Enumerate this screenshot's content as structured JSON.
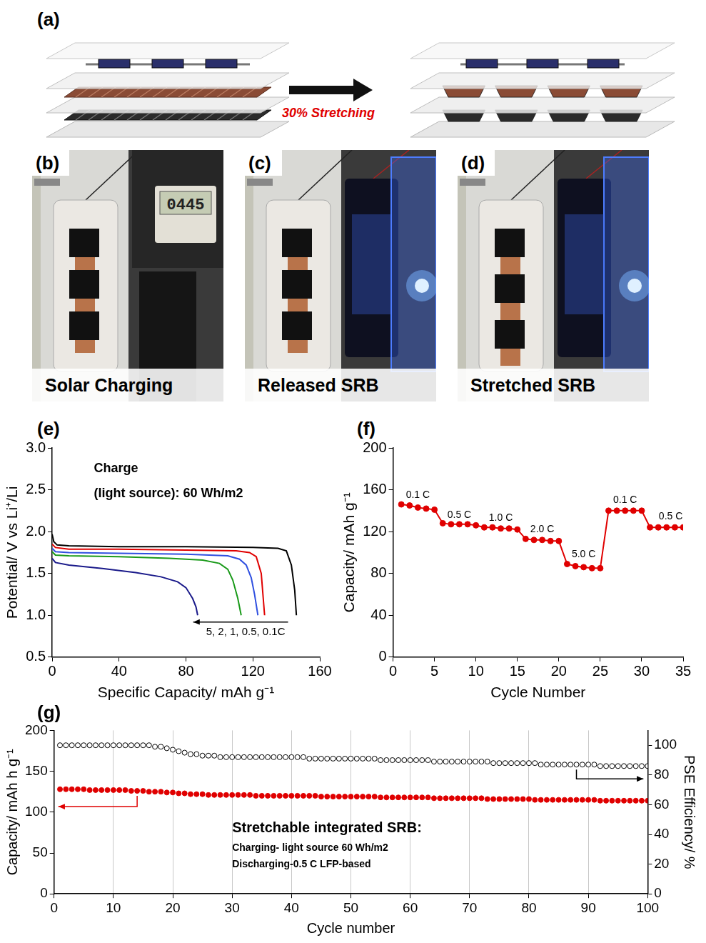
{
  "panels": {
    "a": {
      "letter": "(a)",
      "arrow_label": "30% Stretching"
    },
    "photos": [
      {
        "letter": "(b)",
        "caption": "Solar Charging",
        "meter_reading": "0445"
      },
      {
        "letter": "(c)",
        "caption": "Released SRB"
      },
      {
        "letter": "(d)",
        "caption": "Stretched SRB"
      }
    ]
  },
  "chart_data": [
    {
      "letter": "(e)",
      "type": "line",
      "x_label": "Specific Capacity/ mAh g⁻¹",
      "y_label": "Potential/ V vs Li⁺/Li",
      "xlim": [
        0,
        160
      ],
      "xticks": [
        0,
        40,
        80,
        120,
        160
      ],
      "ylim": [
        0.5,
        3.0
      ],
      "yticks": [
        0.5,
        {
          "value": 1,
          "label": "1.0"
        },
        1.5,
        {
          "value": 2,
          "label": "2.0"
        },
        2.5,
        {
          "value": 3,
          "label": "3.0"
        }
      ],
      "grid": false,
      "annotations": [
        {
          "text": "Charge",
          "x": 25,
          "y": 2.75
        },
        {
          "text": "(light source): 60 Wh/m2",
          "x": 25,
          "y": 2.45
        },
        {
          "text": "5, 2, 1, 0.5, 0.1C",
          "x": 92,
          "y": 0.8
        }
      ],
      "series": [
        {
          "color": "#000000",
          "x": [
            0,
            1,
            3,
            10,
            40,
            80,
            120,
            135,
            140,
            143,
            145,
            146
          ],
          "values": [
            1.97,
            1.88,
            1.84,
            1.83,
            1.82,
            1.82,
            1.81,
            1.8,
            1.77,
            1.6,
            1.3,
            1.0
          ]
        },
        {
          "color": "#e00000",
          "x": [
            0,
            2,
            10,
            40,
            80,
            110,
            118,
            122,
            125,
            126,
            127
          ],
          "values": [
            1.85,
            1.81,
            1.79,
            1.79,
            1.78,
            1.77,
            1.75,
            1.7,
            1.5,
            1.25,
            1.0
          ]
        },
        {
          "color": "#3050e0",
          "x": [
            0,
            2,
            10,
            40,
            80,
            105,
            112,
            116,
            119,
            121,
            123
          ],
          "values": [
            1.8,
            1.76,
            1.75,
            1.74,
            1.73,
            1.71,
            1.67,
            1.6,
            1.45,
            1.25,
            1.0
          ]
        },
        {
          "color": "#1a9a1a",
          "x": [
            0,
            2,
            10,
            40,
            70,
            90,
            100,
            105,
            108,
            111,
            113
          ],
          "values": [
            1.76,
            1.72,
            1.71,
            1.7,
            1.68,
            1.66,
            1.62,
            1.55,
            1.42,
            1.2,
            1.0
          ]
        },
        {
          "color": "#1a1a8a",
          "x": [
            0,
            2,
            10,
            30,
            50,
            65,
            75,
            80,
            84,
            86,
            87
          ],
          "values": [
            1.68,
            1.63,
            1.6,
            1.56,
            1.51,
            1.46,
            1.4,
            1.33,
            1.2,
            1.1,
            1.0
          ]
        }
      ]
    },
    {
      "letter": "(f)",
      "type": "line",
      "x_label": "Cycle Number",
      "y_label": "Capacity/ mAh g⁻¹",
      "xlim": [
        0,
        35
      ],
      "xticks": [
        0,
        5,
        10,
        15,
        20,
        25,
        30,
        35
      ],
      "ylim": [
        0,
        200
      ],
      "yticks": [
        0,
        40,
        80,
        120,
        160,
        200
      ],
      "grid": false,
      "annotations": [
        {
          "text": "0.1 C",
          "x": 3,
          "y": 155
        },
        {
          "text": "0.5 C",
          "x": 8,
          "y": 136
        },
        {
          "text": "1.0 C",
          "x": 13,
          "y": 133
        },
        {
          "text": "2.0 C",
          "x": 18,
          "y": 122
        },
        {
          "text": "5.0 C",
          "x": 23,
          "y": 98
        },
        {
          "text": "0.1 C",
          "x": 28,
          "y": 150
        },
        {
          "text": "0.5 C",
          "x": 33.5,
          "y": 134
        }
      ],
      "series": [
        {
          "color": "#e00000",
          "marker": "circle",
          "line_style": "solid",
          "x": [
            1,
            2,
            3,
            4,
            5,
            6,
            7,
            8,
            9,
            10,
            11,
            12,
            13,
            14,
            15,
            16,
            17,
            18,
            19,
            20,
            21,
            22,
            23,
            24,
            25,
            26,
            27,
            28,
            29,
            30,
            31,
            32,
            33,
            34,
            35
          ],
          "values": [
            146,
            145,
            143,
            142,
            141,
            128,
            127,
            127,
            127,
            126,
            124,
            124,
            123,
            123,
            122,
            113,
            112,
            112,
            111,
            111,
            89,
            87,
            86,
            85,
            85,
            140,
            140,
            140,
            140,
            140,
            124,
            124,
            124,
            124,
            124
          ]
        }
      ]
    },
    {
      "letter": "(g)",
      "type": "scatter",
      "x_label": "Cycle number",
      "y_label": "Capacity/ mAh h g⁻¹",
      "y2_label": "PSE Efficiency/ %",
      "xlim": [
        0,
        100
      ],
      "xticks": [
        0,
        10,
        20,
        30,
        40,
        50,
        60,
        70,
        80,
        90,
        100
      ],
      "ylim": [
        0,
        200
      ],
      "yticks": [
        0,
        50,
        100,
        150,
        200
      ],
      "y2lim": [
        0,
        110
      ],
      "y2ticks": [
        0,
        20,
        40,
        60,
        80,
        100
      ],
      "grid": "x",
      "annotations": [
        {
          "text": "Stretchable integrated SRB:",
          "x": 30,
          "y": 80
        },
        {
          "text": "Charging- light source 60 Wh/m2",
          "x": 30,
          "y": 56
        },
        {
          "text": "Discharging-0.5 C LFP-based",
          "x": 30,
          "y": 36
        }
      ],
      "x": [
        1,
        2,
        3,
        4,
        5,
        6,
        7,
        8,
        9,
        10,
        11,
        12,
        13,
        14,
        15,
        16,
        17,
        18,
        19,
        20,
        21,
        22,
        23,
        24,
        25,
        26,
        27,
        28,
        29,
        30,
        31,
        32,
        33,
        34,
        35,
        36,
        37,
        38,
        39,
        40,
        41,
        42,
        43,
        44,
        45,
        46,
        47,
        48,
        49,
        50,
        51,
        52,
        53,
        54,
        55,
        56,
        57,
        58,
        59,
        60,
        61,
        62,
        63,
        64,
        65,
        66,
        67,
        68,
        69,
        70,
        71,
        72,
        73,
        74,
        75,
        76,
        77,
        78,
        79,
        80,
        81,
        82,
        83,
        84,
        85,
        86,
        87,
        88,
        89,
        90,
        91,
        92,
        93,
        94,
        95,
        96,
        97,
        98,
        99,
        100
      ],
      "series": [
        {
          "color": "#e00000",
          "marker": "circle",
          "line_style": "none",
          "values": [
            128,
            128,
            128,
            128,
            128,
            127,
            127,
            127,
            127,
            127,
            127,
            127,
            126,
            126,
            126,
            125,
            125,
            125,
            124,
            124,
            123,
            123,
            122,
            122,
            122,
            121,
            121,
            121,
            121,
            121,
            121,
            121,
            121,
            120,
            120,
            120,
            120,
            120,
            120,
            120,
            120,
            120,
            120,
            120,
            119,
            119,
            119,
            119,
            119,
            119,
            119,
            119,
            119,
            119,
            118,
            118,
            118,
            118,
            118,
            118,
            118,
            118,
            118,
            117,
            117,
            117,
            117,
            117,
            117,
            117,
            117,
            117,
            116,
            116,
            116,
            116,
            116,
            116,
            116,
            116,
            115,
            115,
            115,
            115,
            115,
            115,
            115,
            115,
            115,
            115,
            115,
            114,
            114,
            114,
            114,
            114,
            114,
            114,
            114,
            114
          ]
        },
        {
          "color": "#000000",
          "marker": "open_circle",
          "line_style": "none",
          "axis": "y2",
          "values": [
            100,
            100,
            100,
            100,
            100,
            100,
            100,
            100,
            100,
            100,
            100,
            100,
            100,
            100,
            100,
            100,
            99,
            99,
            98,
            97,
            96,
            95,
            94,
            94,
            93,
            93,
            93,
            92,
            92,
            92,
            92,
            92,
            92,
            92,
            92,
            92,
            92,
            92,
            92,
            92,
            92,
            92,
            91,
            91,
            91,
            91,
            91,
            91,
            91,
            91,
            91,
            91,
            91,
            91,
            90,
            90,
            90,
            90,
            90,
            90,
            90,
            90,
            90,
            89,
            89,
            89,
            89,
            89,
            89,
            89,
            89,
            89,
            89,
            88,
            88,
            88,
            88,
            88,
            88,
            88,
            88,
            87,
            87,
            87,
            87,
            87,
            87,
            87,
            87,
            87,
            87,
            86,
            86,
            86,
            86,
            86,
            86,
            86,
            86,
            86
          ]
        }
      ]
    }
  ]
}
